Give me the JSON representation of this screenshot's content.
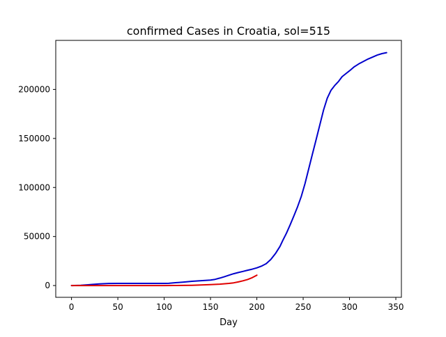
{
  "chart_data": {
    "type": "line",
    "title": "confirmed Cases in Croatia, sol=515",
    "xlabel": "Day",
    "ylabel": "",
    "xlim": [
      -17,
      356
    ],
    "ylim": [
      -12000,
      250000
    ],
    "xticks": [
      0,
      50,
      100,
      150,
      200,
      250,
      300,
      350
    ],
    "xtick_labels": [
      "0",
      "50",
      "100",
      "150",
      "200",
      "250",
      "300",
      "350"
    ],
    "yticks": [
      0,
      50000,
      100000,
      150000,
      200000
    ],
    "ytick_labels": [
      "0",
      "50000",
      "100000",
      "150000",
      "200000"
    ],
    "grid": false,
    "legend": false,
    "series": [
      {
        "color": "#0000cc",
        "x": [
          0,
          10,
          20,
          30,
          40,
          50,
          60,
          70,
          80,
          90,
          100,
          105,
          110,
          120,
          130,
          140,
          150,
          155,
          160,
          165,
          170,
          175,
          180,
          185,
          190,
          195,
          200,
          205,
          210,
          215,
          220,
          225,
          228,
          232,
          236,
          240,
          244,
          248,
          252,
          256,
          260,
          264,
          268,
          272,
          276,
          280,
          284,
          288,
          292,
          296,
          300,
          305,
          310,
          315,
          320,
          325,
          330,
          335,
          340
        ],
        "y": [
          0,
          300,
          900,
          1600,
          2100,
          2200,
          2200,
          2200,
          2200,
          2200,
          2200,
          2300,
          2700,
          3500,
          4300,
          5000,
          5600,
          6300,
          7600,
          9000,
          10600,
          12100,
          13300,
          14400,
          15600,
          16700,
          18000,
          19800,
          22300,
          26500,
          32500,
          40000,
          46000,
          53500,
          62000,
          71000,
          80500,
          91000,
          104000,
          119000,
          134000,
          149000,
          164000,
          179000,
          191000,
          199000,
          204000,
          208000,
          213000,
          216000,
          219000,
          223000,
          226000,
          228500,
          231000,
          233000,
          235000,
          236500,
          237500
        ]
      },
      {
        "color": "#e00000",
        "x": [
          0,
          20,
          40,
          60,
          80,
          100,
          110,
          120,
          130,
          140,
          150,
          160,
          170,
          175,
          180,
          185,
          190,
          195,
          200
        ],
        "y": [
          0,
          0,
          0,
          0,
          0,
          0,
          50,
          150,
          300,
          550,
          900,
          1400,
          2200,
          2800,
          3700,
          4800,
          6200,
          8000,
          10600
        ]
      }
    ]
  }
}
